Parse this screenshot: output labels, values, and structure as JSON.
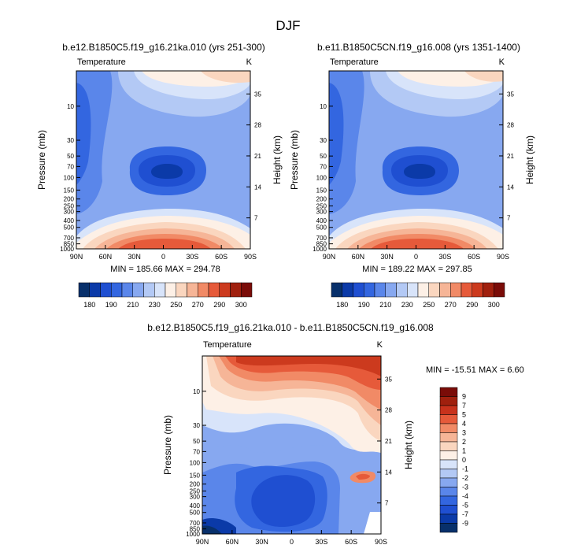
{
  "figure": {
    "title": "DJF"
  },
  "chart_data": [
    {
      "id": "panel_a",
      "type": "heatmap",
      "subtitle": "b.e12.B1850C5.f19_g16.21ka.010 (yrs 251-300)",
      "variable_label": "Temperature",
      "units": "K",
      "ylabel": "Pressure (mb)",
      "ylabel_right": "Height (km)",
      "x_ticks": [
        "90N",
        "60N",
        "30N",
        "0",
        "30S",
        "60S",
        "90S"
      ],
      "y_ticks": [
        "10",
        "30",
        "50",
        "70",
        "100",
        "150",
        "200",
        "250",
        "300",
        "400",
        "500",
        "700",
        "850",
        "1000"
      ],
      "y_ticks_right": [
        "35",
        "28",
        "21",
        "14",
        "7"
      ],
      "stats_label": "MIN = 185.66  MAX = 294.78",
      "min": 185.66,
      "max": 294.78,
      "colorbar_labels": [
        "180",
        "190",
        "210",
        "230",
        "250",
        "270",
        "290",
        "300"
      ]
    },
    {
      "id": "panel_b",
      "type": "heatmap",
      "subtitle": "b.e11.B1850C5CN.f19_g16.008 (yrs 1351-1400)",
      "variable_label": "Temperature",
      "units": "K",
      "ylabel": "Pressure (mb)",
      "ylabel_right": "Height (km)",
      "x_ticks": [
        "90N",
        "60N",
        "30N",
        "0",
        "30S",
        "60S",
        "90S"
      ],
      "y_ticks": [
        "10",
        "30",
        "50",
        "70",
        "100",
        "150",
        "200",
        "250",
        "300",
        "400",
        "500",
        "700",
        "850",
        "1000"
      ],
      "y_ticks_right": [
        "35",
        "28",
        "21",
        "14",
        "7"
      ],
      "stats_label": "MIN = 189.22  MAX = 297.85",
      "min": 189.22,
      "max": 297.85,
      "colorbar_labels": [
        "180",
        "190",
        "210",
        "230",
        "250",
        "270",
        "290",
        "300"
      ]
    },
    {
      "id": "panel_diff",
      "type": "heatmap",
      "subtitle": "b.e12.B1850C5.f19_g16.21ka.010 - b.e11.B1850C5CN.f19_g16.008",
      "variable_label": "Temperature",
      "units": "K",
      "ylabel": "Pressure (mb)",
      "ylabel_right": "Height (km)",
      "x_ticks": [
        "90N",
        "60N",
        "30N",
        "0",
        "30S",
        "60S",
        "90S"
      ],
      "y_ticks": [
        "10",
        "30",
        "50",
        "70",
        "100",
        "150",
        "200",
        "250",
        "300",
        "400",
        "500",
        "700",
        "850",
        "1000"
      ],
      "y_ticks_right": [
        "35",
        "28",
        "21",
        "14",
        "7"
      ],
      "stats_label": "MIN = -15.51  MAX =   6.60",
      "min": -15.51,
      "max": 6.6,
      "colorbar_labels": [
        "9",
        "7",
        "5",
        "4",
        "3",
        "2",
        "1",
        "0",
        "-1",
        "-2",
        "-3",
        "-4",
        "-5",
        "-7",
        "-9"
      ]
    }
  ],
  "colors": {
    "abs_scale": [
      "#08306b",
      "#0b3aa8",
      "#1f4fd1",
      "#3366e0",
      "#5a86ea",
      "#87a8f0",
      "#b3c9f5",
      "#d8e4fa",
      "#fdf0e6",
      "#fad6bf",
      "#f6b597",
      "#f18a66",
      "#e65a3a",
      "#cc3a1e",
      "#a0200e",
      "#7a0c08"
    ],
    "diff_scale": [
      "#7a0c08",
      "#a0200e",
      "#c8321c",
      "#e65a3a",
      "#f18a66",
      "#f6b597",
      "#fad6bf",
      "#fdf0e6",
      "#d8e4fa",
      "#b3c9f5",
      "#87a8f0",
      "#5a86ea",
      "#3366e0",
      "#1f4fd1",
      "#0b3aa8",
      "#08306b"
    ]
  }
}
